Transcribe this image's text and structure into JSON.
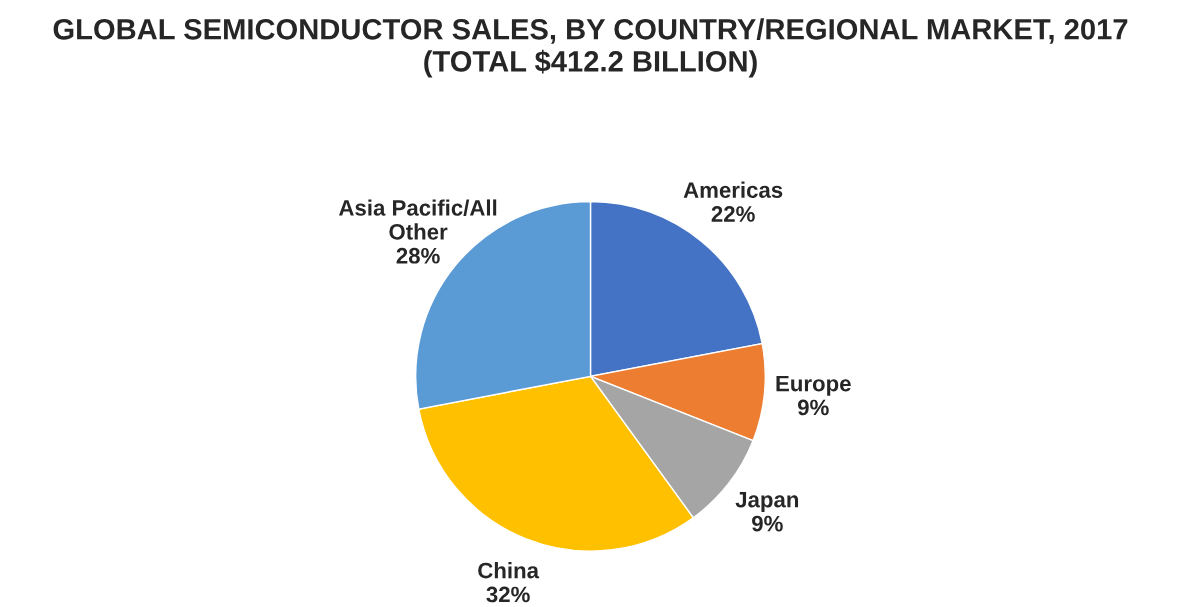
{
  "chart_data": {
    "type": "pie",
    "title": "GLOBAL SEMICONDUCTOR SALES, BY COUNTRY/REGIONAL MARKET, 2017 (TOTAL $412.2 BILLION)",
    "categories": [
      "Americas",
      "Europe",
      "Japan",
      "China",
      "Asia Pacific/All\nOther"
    ],
    "values": [
      22,
      9,
      9,
      32,
      28
    ],
    "colors": [
      "#4472c4",
      "#ed7d31",
      "#a5a5a5",
      "#ffc000",
      "#5b9bd5"
    ],
    "value_labels": [
      "22%",
      "9%",
      "9%",
      "32%",
      "28%"
    ],
    "legend": false
  }
}
